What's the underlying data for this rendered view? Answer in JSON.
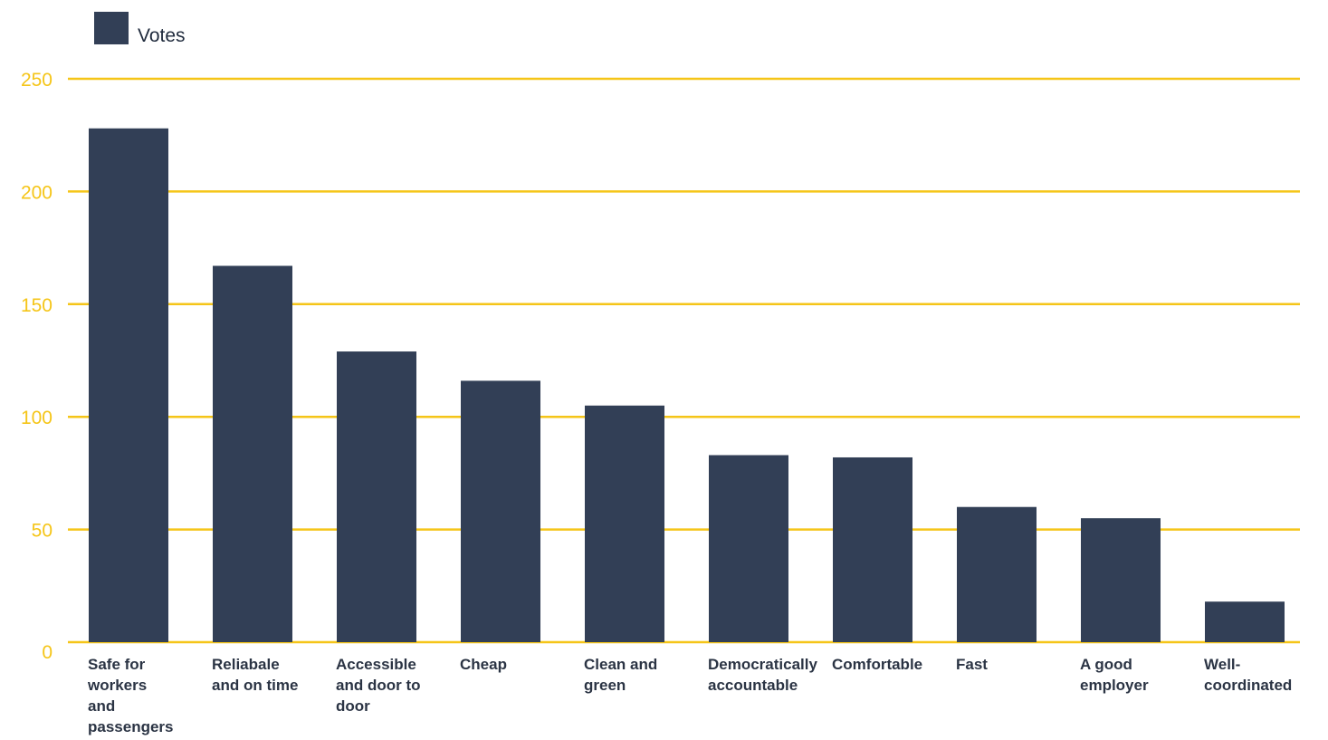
{
  "chart_data": {
    "type": "bar",
    "title": "",
    "xlabel": "",
    "ylabel": "",
    "ylim": [
      0,
      250
    ],
    "yticks": [
      0,
      50,
      100,
      150,
      200,
      250
    ],
    "grid": true,
    "legend_position": "top-left",
    "categories": [
      "Safe for workers and passengers",
      "Reliabale and on time",
      "Accessible and door to door",
      "Cheap",
      "Clean and green",
      "Democratically accountable",
      "Comfortable",
      "Fast",
      "A good employer",
      "Well-coordinated"
    ],
    "category_label_lines": [
      [
        "Safe for",
        "workers",
        "and",
        "passengers"
      ],
      [
        "Reliabale",
        "and on time"
      ],
      [
        "Accessible",
        "and door to",
        "door"
      ],
      [
        "Cheap"
      ],
      [
        "Clean and",
        "green"
      ],
      [
        "Democratically",
        "accountable"
      ],
      [
        "Comfortable"
      ],
      [
        "Fast"
      ],
      [
        "A good",
        "employer"
      ],
      [
        "Well-",
        "coordinated"
      ]
    ],
    "series": [
      {
        "name": "Votes",
        "values": [
          228,
          167,
          129,
          116,
          105,
          83,
          82,
          60,
          55,
          18
        ]
      }
    ]
  },
  "colors": {
    "bar": "#323f56",
    "grid": "#f5c518",
    "tick_label": "#f5c518",
    "category_label": "#2b3444"
  }
}
